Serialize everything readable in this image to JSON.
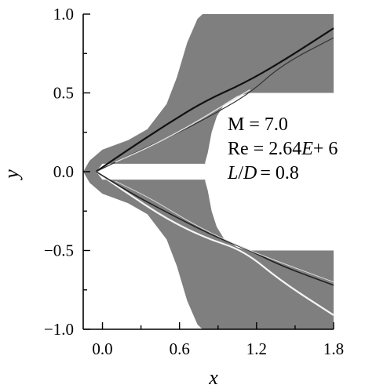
{
  "chart_data": {
    "type": "contour",
    "xlabel": "x",
    "ylabel": "y",
    "xlim": [
      -0.15,
      1.8
    ],
    "ylim": [
      -1.0,
      1.0
    ],
    "xticks": [
      {
        "value": 0.0,
        "label": "0.0"
      },
      {
        "value": 0.6,
        "label": "0.6"
      },
      {
        "value": 1.2,
        "label": "1.2"
      },
      {
        "value": 1.8,
        "label": "1.8"
      }
    ],
    "yticks": [
      {
        "value": 1.0,
        "label": "1.0"
      },
      {
        "value": 0.5,
        "label": "0.5"
      },
      {
        "value": 0.0,
        "label": "0.0"
      },
      {
        "value": -0.5,
        "label": "−0.5"
      },
      {
        "value": -1.0,
        "label": "−1.0"
      }
    ],
    "annotation": {
      "mach": "M = 7.0",
      "reynolds": "Re = 2.64",
      "reynolds_exp": "+ 6",
      "ld_value": "= 0.8"
    },
    "flow_field": {
      "background_color": "#7f7f7f",
      "body_upper": [
        [
          -0.05,
          0.0
        ],
        [
          0.0,
          0.05
        ],
        [
          0.8,
          0.05
        ],
        [
          0.8,
          0.0
        ]
      ],
      "upper_domain": [
        [
          -0.15,
          0.0
        ],
        [
          -0.1,
          0.07
        ],
        [
          0.0,
          0.14
        ],
        [
          0.2,
          0.2
        ],
        [
          0.35,
          0.27
        ],
        [
          0.5,
          0.43
        ],
        [
          0.58,
          0.6
        ],
        [
          0.66,
          0.82
        ],
        [
          0.74,
          0.97
        ],
        [
          0.78,
          1.0
        ],
        [
          1.8,
          1.0
        ],
        [
          1.8,
          0.5
        ],
        [
          1.15,
          0.5
        ],
        [
          1.05,
          0.48
        ],
        [
          0.95,
          0.43
        ],
        [
          0.89,
          0.35
        ],
        [
          0.85,
          0.25
        ],
        [
          0.82,
          0.12
        ],
        [
          0.8,
          0.06
        ],
        [
          0.8,
          0.05
        ],
        [
          0.0,
          0.05
        ],
        [
          -0.05,
          0.0
        ]
      ],
      "lower_domain": [
        [
          -0.15,
          0.0
        ],
        [
          -0.1,
          -0.07
        ],
        [
          0.0,
          -0.14
        ],
        [
          0.2,
          -0.2
        ],
        [
          0.35,
          -0.27
        ],
        [
          0.5,
          -0.43
        ],
        [
          0.58,
          -0.6
        ],
        [
          0.66,
          -0.82
        ],
        [
          0.74,
          -0.97
        ],
        [
          0.78,
          -1.0
        ],
        [
          1.8,
          -1.0
        ],
        [
          1.8,
          -0.5
        ],
        [
          1.15,
          -0.5
        ],
        [
          1.05,
          -0.48
        ],
        [
          0.95,
          -0.43
        ],
        [
          0.89,
          -0.35
        ],
        [
          0.85,
          -0.25
        ],
        [
          0.82,
          -0.12
        ],
        [
          0.8,
          -0.06
        ],
        [
          0.8,
          -0.05
        ],
        [
          0.0,
          -0.05
        ],
        [
          -0.05,
          0.0
        ]
      ],
      "shocks": [
        {
          "points": [
            [
              -0.05,
              0.0
            ],
            [
              0.2,
              0.14
            ],
            [
              0.5,
              0.3
            ],
            [
              0.8,
              0.45
            ],
            [
              1.1,
              0.56
            ],
            [
              1.4,
              0.7
            ],
            [
              1.8,
              0.91
            ]
          ],
          "color": "#111111",
          "width": 2.2
        },
        {
          "points": [
            [
              -0.05,
              0.0
            ],
            [
              0.25,
              0.12
            ],
            [
              0.6,
              0.25
            ],
            [
              0.9,
              0.38
            ],
            [
              1.15,
              0.5
            ],
            [
              1.4,
              0.68
            ],
            [
              1.8,
              0.85
            ]
          ],
          "color": "#333333",
          "width": 1.2
        },
        {
          "points": [
            [
              0.1,
              0.06
            ],
            [
              0.4,
              0.17
            ],
            [
              0.7,
              0.3
            ],
            [
              1.0,
              0.45
            ],
            [
              1.15,
              0.52
            ]
          ],
          "color": "#e0e0e0",
          "width": 1.4
        },
        {
          "points": [
            [
              -0.05,
              0.0
            ],
            [
              0.2,
              -0.14
            ],
            [
              0.5,
              -0.3
            ],
            [
              0.8,
              -0.42
            ],
            [
              1.1,
              -0.5
            ],
            [
              1.4,
              -0.7
            ],
            [
              1.8,
              -0.91
            ]
          ],
          "color": "#f5f5f5",
          "width": 2.2
        },
        {
          "points": [
            [
              -0.05,
              0.0
            ],
            [
              0.25,
              -0.15
            ],
            [
              0.6,
              -0.3
            ],
            [
              0.9,
              -0.42
            ],
            [
              1.15,
              -0.5
            ],
            [
              1.4,
              -0.6
            ],
            [
              1.8,
              -0.72
            ]
          ],
          "color": "#222222",
          "width": 1.6
        },
        {
          "points": [
            [
              0.1,
              -0.06
            ],
            [
              0.4,
              -0.18
            ],
            [
              0.7,
              -0.33
            ],
            [
              1.0,
              -0.45
            ],
            [
              1.3,
              -0.55
            ],
            [
              1.8,
              -0.7
            ]
          ],
          "color": "#d8d8d8",
          "width": 1.0
        }
      ]
    }
  }
}
